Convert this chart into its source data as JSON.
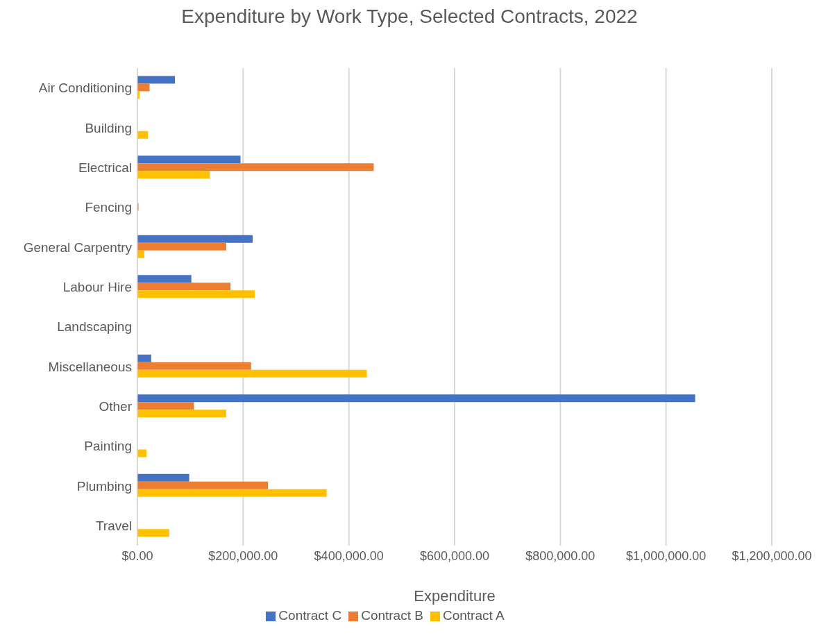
{
  "chart_data": {
    "type": "bar",
    "orientation": "horizontal",
    "title": "Expenditure by Work Type, Selected Contracts, 2022",
    "xlabel": "Expenditure",
    "categories": [
      "Air Conditioning",
      "Building",
      "Electrical",
      "Fencing",
      "General Carpentry",
      "Labour Hire",
      "Landscaping",
      "Miscellaneous",
      "Other",
      "Painting",
      "Plumbing",
      "Travel"
    ],
    "series": [
      {
        "name": "Contract C",
        "color": "#4472c4",
        "values": [
          71000,
          null,
          195000,
          null,
          218000,
          102000,
          null,
          26000,
          1055000,
          null,
          98000,
          null
        ]
      },
      {
        "name": "Contract B",
        "color": "#ed7d31",
        "values": [
          23000,
          null,
          447000,
          2000,
          168000,
          176000,
          null,
          215000,
          107000,
          null,
          247000,
          null
        ]
      },
      {
        "name": "Contract A",
        "color": "#ffc000",
        "values": [
          4000,
          20000,
          137000,
          null,
          13000,
          222000,
          null,
          434000,
          168000,
          17000,
          358000,
          60000
        ]
      }
    ],
    "xlim": [
      0,
      1200000
    ],
    "xticks": [
      {
        "value": 0,
        "label": "$0.00"
      },
      {
        "value": 200000,
        "label": "$200,000.00"
      },
      {
        "value": 400000,
        "label": "$400,000.00"
      },
      {
        "value": 600000,
        "label": "$600,000.00"
      },
      {
        "value": 800000,
        "label": "$800,000.00"
      },
      {
        "value": 1000000,
        "label": "$1,000,000.00"
      },
      {
        "value": 1200000,
        "label": "$1,200,000.00"
      }
    ],
    "grid": "x",
    "legend": "bottom"
  }
}
